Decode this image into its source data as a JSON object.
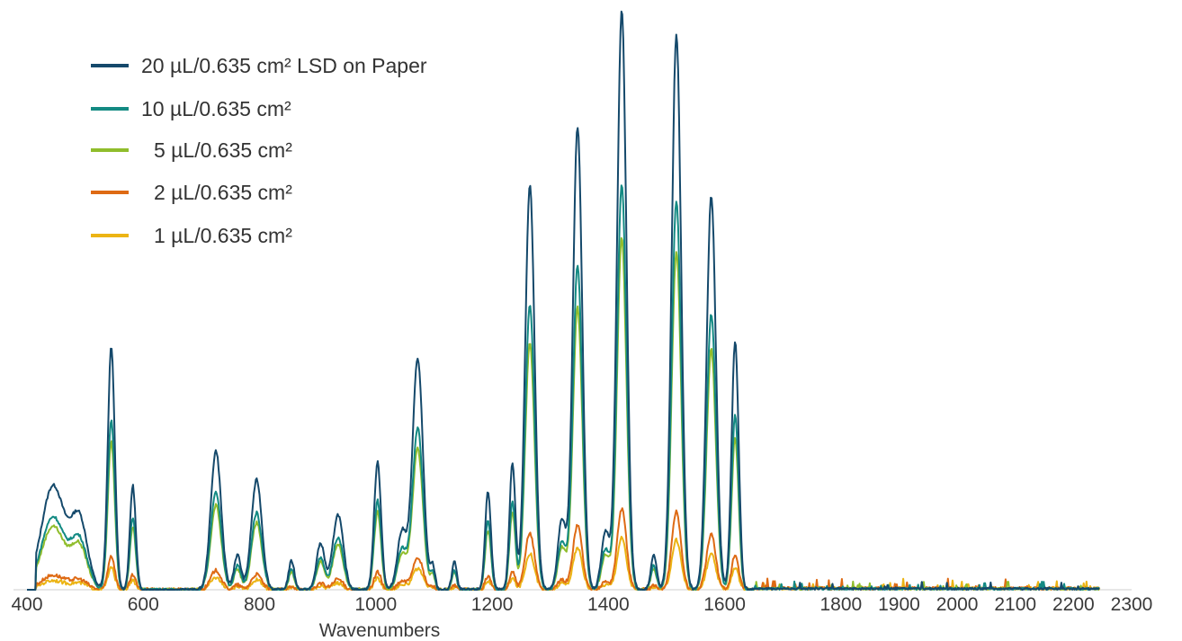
{
  "chart_data": {
    "type": "line",
    "title": "",
    "xlabel": "Wavenumbers",
    "ylabel": "",
    "xlim": [
      400,
      2300
    ],
    "ylim": [
      0,
      100
    ],
    "grid": false,
    "legend_position": "top-left",
    "x_ticks": [
      400,
      600,
      800,
      1000,
      1200,
      1400,
      1600,
      1800,
      1900,
      2000,
      2100,
      2200,
      2300
    ],
    "series": [
      {
        "name": "20 µL/0.635 cm² LSD on Paper",
        "color": "#15496b",
        "scale": 1.0,
        "noise": 0.5
      },
      {
        "name": "10 µL/0.635 cm²",
        "color": "#138a83",
        "scale": 0.7,
        "noise": 0.5
      },
      {
        "name": "5 µL/0.635 cm²",
        "color": "#90bd2c",
        "scale": 0.61,
        "noise": 0.5
      },
      {
        "name": "2 µL/0.635 cm²",
        "color": "#de6a14",
        "scale": 0.14,
        "noise": 0.6
      },
      {
        "name": "1 µL/0.635 cm²",
        "color": "#ecb414",
        "scale": 0.09,
        "noise": 0.6
      }
    ],
    "peaks": [
      {
        "x": 445,
        "y": 18,
        "w": 20
      },
      {
        "x": 490,
        "y": 12,
        "w": 14
      },
      {
        "x": 545,
        "y": 42,
        "w": 6
      },
      {
        "x": 582,
        "y": 18,
        "w": 5
      },
      {
        "x": 725,
        "y": 24,
        "w": 9
      },
      {
        "x": 762,
        "y": 6,
        "w": 6
      },
      {
        "x": 795,
        "y": 19,
        "w": 9
      },
      {
        "x": 855,
        "y": 5,
        "w": 5
      },
      {
        "x": 905,
        "y": 8,
        "w": 7
      },
      {
        "x": 935,
        "y": 13,
        "w": 9
      },
      {
        "x": 1003,
        "y": 22,
        "w": 6
      },
      {
        "x": 1045,
        "y": 10,
        "w": 8
      },
      {
        "x": 1072,
        "y": 40,
        "w": 9
      },
      {
        "x": 1098,
        "y": 4,
        "w": 4
      },
      {
        "x": 1135,
        "y": 5,
        "w": 4
      },
      {
        "x": 1193,
        "y": 17,
        "w": 5
      },
      {
        "x": 1235,
        "y": 22,
        "w": 5
      },
      {
        "x": 1265,
        "y": 70,
        "w": 8
      },
      {
        "x": 1320,
        "y": 12,
        "w": 7
      },
      {
        "x": 1347,
        "y": 80,
        "w": 8
      },
      {
        "x": 1395,
        "y": 10,
        "w": 7
      },
      {
        "x": 1423,
        "y": 100,
        "w": 8
      },
      {
        "x": 1478,
        "y": 6,
        "w": 5
      },
      {
        "x": 1517,
        "y": 96,
        "w": 8
      },
      {
        "x": 1577,
        "y": 68,
        "w": 8
      },
      {
        "x": 1618,
        "y": 43,
        "w": 6
      }
    ]
  },
  "legend": {
    "items": [
      "20 µL/0.635 cm² LSD on Paper",
      "10 µL/0.635 cm²",
      "5 µL/0.635 cm²",
      "2 µL/0.635 cm²",
      "1 µL/0.635 cm²"
    ]
  }
}
